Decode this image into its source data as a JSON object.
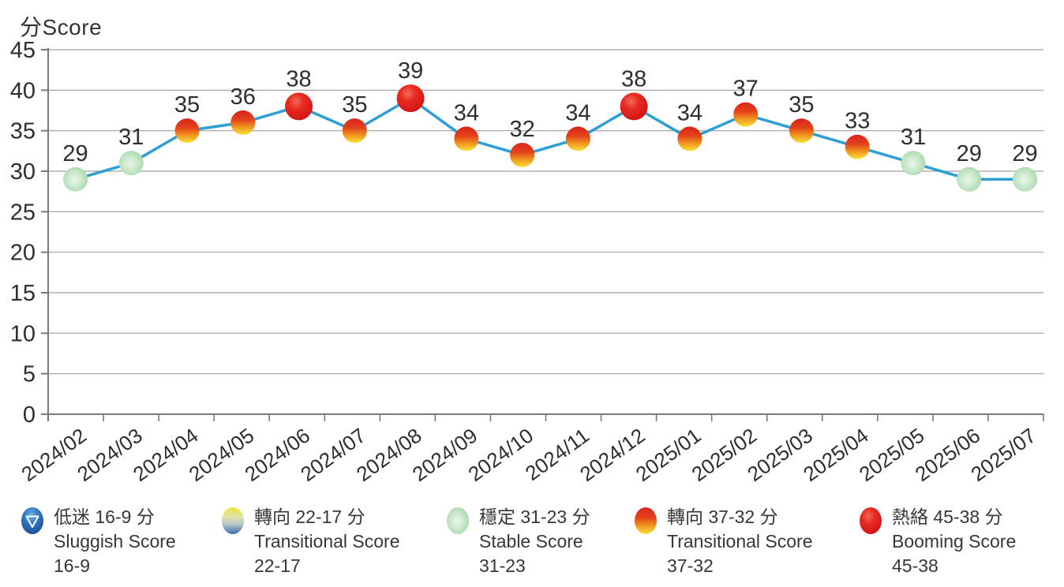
{
  "chart_data": {
    "type": "line",
    "title": "分Score",
    "ylabel": "分Score",
    "x": [
      "2024/02",
      "2024/03",
      "2024/04",
      "2024/05",
      "2024/06",
      "2024/07",
      "2024/08",
      "2024/09",
      "2024/10",
      "2024/11",
      "2024/12",
      "2025/01",
      "2025/02",
      "2025/03",
      "2025/04",
      "2025/05",
      "2025/06",
      "2025/07"
    ],
    "values": [
      29,
      31,
      35,
      36,
      38,
      35,
      39,
      34,
      32,
      34,
      38,
      34,
      37,
      35,
      33,
      31,
      29,
      29
    ],
    "levels": [
      "stable",
      "stable",
      "transitional_high",
      "transitional_high",
      "booming",
      "transitional_high",
      "booming",
      "transitional_high",
      "transitional_high",
      "transitional_high",
      "booming",
      "transitional_high",
      "transitional_high",
      "transitional_high",
      "transitional_high",
      "stable",
      "stable",
      "stable"
    ],
    "ylim": [
      0,
      45
    ],
    "ytick_step": 5,
    "yticks": [
      0,
      5,
      10,
      15,
      20,
      25,
      30,
      35,
      40,
      45
    ],
    "grid": "horizontal",
    "legend_position": "bottom",
    "colors": {
      "line": "#2E9FD6",
      "grid": "#A0A0A0",
      "axis": "#7A7A7A",
      "text": "#312D2B",
      "markers": {
        "sluggish": {
          "type": "radial",
          "stops": [
            [
              "0%",
              "#6CB5E3"
            ],
            [
              "45%",
              "#3378BE"
            ],
            [
              "100%",
              "#1B4C99"
            ]
          ]
        },
        "transitional_low": {
          "type": "linear",
          "stops": [
            [
              "0%",
              "#EDE73B"
            ],
            [
              "38%",
              "#DDE0AC"
            ],
            [
              "62%",
              "#B7C9C6"
            ],
            [
              "100%",
              "#3D6BB3"
            ]
          ]
        },
        "stable": {
          "type": "radial",
          "stops": [
            [
              "0%",
              "#EAF6EA"
            ],
            [
              "55%",
              "#BFE3C1"
            ],
            [
              "100%",
              "#8FCA93"
            ]
          ]
        },
        "transitional_high": {
          "type": "linear",
          "stops": [
            [
              "0%",
              "#D9261C"
            ],
            [
              "38%",
              "#E4411C"
            ],
            [
              "68%",
              "#F0941E"
            ],
            [
              "100%",
              "#F9E53D"
            ]
          ]
        },
        "booming": {
          "type": "radial",
          "stops": [
            [
              "0%",
              "#F4695A"
            ],
            [
              "40%",
              "#E62B22"
            ],
            [
              "100%",
              "#D41313"
            ]
          ]
        }
      }
    }
  },
  "legend": {
    "items": [
      {
        "id": "sluggish",
        "zh": "低迷 16-9 分",
        "en": "Sluggish Score",
        "range": "16-9"
      },
      {
        "id": "transitional_low",
        "zh": "轉向 22-17 分",
        "en": "Transitional Score",
        "range": "22-17"
      },
      {
        "id": "stable",
        "zh": "穩定 31-23 分",
        "en": "Stable Score",
        "range": "31-23"
      },
      {
        "id": "transitional_high",
        "zh": "轉向 37-32 分",
        "en": "Transitional Score",
        "range": "37-32"
      },
      {
        "id": "booming",
        "zh": "熱絡 45-38 分",
        "en": "Booming Score",
        "range": "45-38"
      }
    ]
  }
}
